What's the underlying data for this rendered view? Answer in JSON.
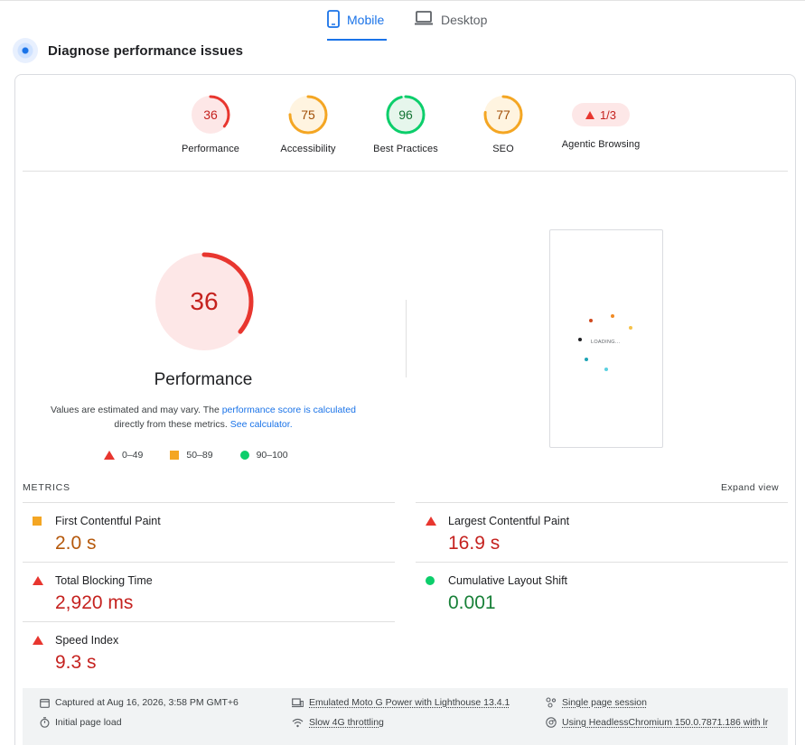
{
  "tabs": [
    {
      "label": "Mobile",
      "icon": "phone-icon",
      "active": true
    },
    {
      "label": "Desktop",
      "icon": "laptop-icon",
      "active": false
    }
  ],
  "header": {
    "title": "Diagnose performance issues"
  },
  "summary": [
    {
      "label": "Performance",
      "score": "36",
      "level": 0.36,
      "color": "#e8362f",
      "bg": "#fde7e7",
      "text_color": "#c5221f"
    },
    {
      "label": "Accessibility",
      "score": "75",
      "level": 0.75,
      "color": "#f4a623",
      "bg": "#fff4e0",
      "text_color": "#a04e06"
    },
    {
      "label": "Best Practices",
      "score": "96",
      "level": 0.96,
      "color": "#0cce6b",
      "bg": "#e6f6ec",
      "text_color": "#137333"
    },
    {
      "label": "SEO",
      "score": "77",
      "level": 0.77,
      "color": "#f4a623",
      "bg": "#fff4e0",
      "text_color": "#a04e06"
    }
  ],
  "agentic": {
    "label": "Agentic Browsing",
    "value": "1/3"
  },
  "performance": {
    "score": "36",
    "level": 0.36,
    "title": "Performance",
    "desc_1": "Values are estimated and may vary. The ",
    "desc_link_1": "performance score is calculated",
    "desc_2": "directly from these metrics. ",
    "desc_link_2": "See calculator."
  },
  "legend": [
    "0–49",
    "50–89",
    "90–100"
  ],
  "screenshot": {
    "loading_text": "LOADING..."
  },
  "metrics": {
    "heading": "METRICS",
    "expand_label": "Expand view",
    "items": [
      {
        "name": "First Contentful Paint",
        "value": "2.0 s",
        "rating": "average"
      },
      {
        "name": "Largest Contentful Paint",
        "value": "16.9 s",
        "rating": "fail"
      },
      {
        "name": "Total Blocking Time",
        "value": "2,920 ms",
        "rating": "fail"
      },
      {
        "name": "Cumulative Layout Shift",
        "value": "0.001",
        "rating": "pass"
      },
      {
        "name": "Speed Index",
        "value": "9.3 s",
        "rating": "fail"
      }
    ]
  },
  "footer": {
    "captured": "Captured at Aug 16, 2026, 3:58 PM GMT+6",
    "load": "Initial page load",
    "device": "Emulated Moto G Power with Lighthouse 13.4.1",
    "throttling": "Slow 4G throttling",
    "session": "Single page session",
    "browser": "Using HeadlessChromium 150.0.7871.186 with lr"
  },
  "colors": {
    "fail": "#e8362f",
    "average": "#f4a623",
    "pass": "#0cce6b",
    "accent": "#1a73e8"
  }
}
